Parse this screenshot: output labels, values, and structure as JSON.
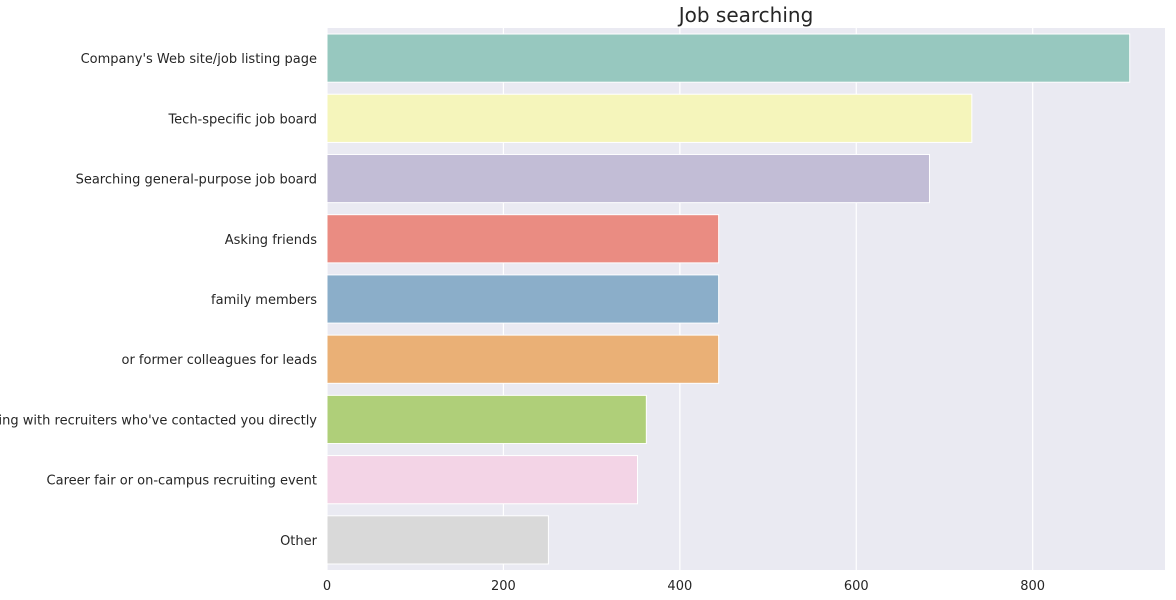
{
  "chart_data": {
    "type": "bar",
    "orientation": "horizontal",
    "title": "Job searching",
    "xlabel": "",
    "ylabel": "",
    "xlim": [
      0,
      950
    ],
    "x_ticks": [
      0,
      200,
      400,
      600,
      800
    ],
    "grid": true,
    "categories": [
      "Company's Web site/job listing page",
      "Tech-specific job board",
      "Searching general-purpose job board",
      "Asking friends",
      " family members",
      " or former colleagues for leads",
      "Meeting with recruiters who've contacted you directly",
      "Career fair or on-campus recruiting event",
      "Other"
    ],
    "values": [
      910,
      731,
      683,
      444,
      444,
      444,
      362,
      352,
      251
    ],
    "colors": [
      "#97c8bf",
      "#f5f5bb",
      "#c2bdd6",
      "#ea8c82",
      "#8baec9",
      "#eab076",
      "#afcf79",
      "#f3d4e6",
      "#d9d9d9"
    ],
    "background_color": "#eaeaf2",
    "grid_color": "#ffffff"
  }
}
